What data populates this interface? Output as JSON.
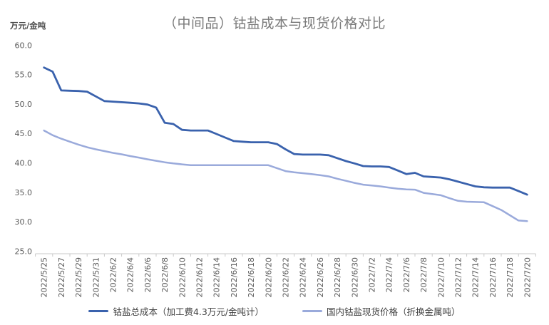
{
  "chart": {
    "title": "（中间品）钴盐成本与现货价格对比",
    "unit_label": "万元/金吨"
  },
  "colors": {
    "background": "#ffffff",
    "title_text": "#7a7a7a",
    "axis_label_text": "#595959",
    "axis_line": "#c9c9c9",
    "legend_text": "#404040",
    "series_dark_blue": "#3a62ad",
    "series_light_blue": "#9aaadb"
  },
  "chart_data": {
    "type": "line",
    "title": "（中间品）钴盐成本与现货价格对比",
    "xlabel": "",
    "ylabel": "万元/金吨",
    "ylim": [
      25,
      60
    ],
    "ytick_step": 5,
    "y_tick_labels": [
      "60.0",
      "55.0",
      "50.0",
      "45.0",
      "40.0",
      "35.0",
      "30.0",
      "25.0"
    ],
    "grid": false,
    "legend_position": "bottom",
    "x": [
      "2022/5/25",
      "2022/5/26",
      "2022/5/27",
      "2022/5/28",
      "2022/5/29",
      "2022/5/30",
      "2022/5/31",
      "2022/6/1",
      "2022/6/2",
      "2022/6/3",
      "2022/6/4",
      "2022/6/5",
      "2022/6/6",
      "2022/6/7",
      "2022/6/8",
      "2022/6/9",
      "2022/6/10",
      "2022/6/11",
      "2022/6/12",
      "2022/6/13",
      "2022/6/14",
      "2022/6/15",
      "2022/6/16",
      "2022/6/17",
      "2022/6/18",
      "2022/6/19",
      "2022/6/20",
      "2022/6/21",
      "2022/6/22",
      "2022/6/23",
      "2022/6/24",
      "2022/6/25",
      "2022/6/26",
      "2022/6/27",
      "2022/6/28",
      "2022/6/29",
      "2022/6/30",
      "2022/7/1",
      "2022/7/2",
      "2022/7/3",
      "2022/7/4",
      "2022/7/5",
      "2022/7/6",
      "2022/7/7",
      "2022/7/8",
      "2022/7/9",
      "2022/7/10",
      "2022/7/11",
      "2022/7/12",
      "2022/7/13",
      "2022/7/14",
      "2022/7/15",
      "2022/7/16",
      "2022/7/17",
      "2022/7/18",
      "2022/7/19",
      "2022/7/20"
    ],
    "x_tick_labels": [
      "2022/5/25",
      "2022/5/27",
      "2022/5/29",
      "2022/5/31",
      "2022/6/2",
      "2022/6/4",
      "2022/6/6",
      "2022/6/8",
      "2022/6/10",
      "2022/6/12",
      "2022/6/14",
      "2022/6/16",
      "2022/6/18",
      "2022/6/20",
      "2022/6/22",
      "2022/6/24",
      "2022/6/26",
      "2022/6/28",
      "2022/6/30",
      "2022/7/2",
      "2022/7/4",
      "2022/7/6",
      "2022/7/8",
      "2022/7/10",
      "2022/7/12",
      "2022/7/14",
      "2022/7/16",
      "2022/7/18",
      "2022/7/20"
    ],
    "series": [
      {
        "name": "钴盐总成本（加工费4.3万元/金吨计）",
        "color": "#3a62ad",
        "line_width": 2.8,
        "values": [
          56.2,
          55.5,
          52.3,
          52.25,
          52.2,
          52.1,
          51.3,
          50.5,
          50.4,
          50.3,
          50.2,
          50.1,
          49.9,
          49.4,
          46.8,
          46.6,
          45.6,
          45.5,
          45.5,
          45.5,
          44.9,
          44.3,
          43.7,
          43.6,
          43.5,
          43.5,
          43.5,
          43.2,
          42.3,
          41.5,
          41.4,
          41.4,
          41.4,
          41.3,
          40.8,
          40.3,
          39.9,
          39.45,
          39.4,
          39.4,
          39.3,
          38.7,
          38.1,
          38.3,
          37.7,
          37.6,
          37.5,
          37.2,
          36.8,
          36.4,
          36.0,
          35.85,
          35.8,
          35.8,
          35.8,
          35.2,
          34.6
        ]
      },
      {
        "name": "国内钴盐现货价格（折换金属吨）",
        "color": "#9aaadb",
        "line_width": 2.5,
        "values": [
          45.5,
          44.7,
          44.1,
          43.6,
          43.1,
          42.65,
          42.3,
          42.0,
          41.7,
          41.45,
          41.15,
          40.9,
          40.6,
          40.35,
          40.1,
          39.9,
          39.75,
          39.6,
          39.6,
          39.6,
          39.6,
          39.6,
          39.6,
          39.6,
          39.6,
          39.6,
          39.6,
          39.1,
          38.6,
          38.4,
          38.25,
          38.1,
          37.9,
          37.7,
          37.3,
          36.95,
          36.6,
          36.3,
          36.15,
          36.0,
          35.8,
          35.6,
          35.5,
          35.45,
          34.9,
          34.7,
          34.5,
          34.0,
          33.55,
          33.4,
          33.35,
          33.3,
          32.65,
          32.0,
          31.1,
          30.2,
          30.1
        ]
      }
    ]
  }
}
